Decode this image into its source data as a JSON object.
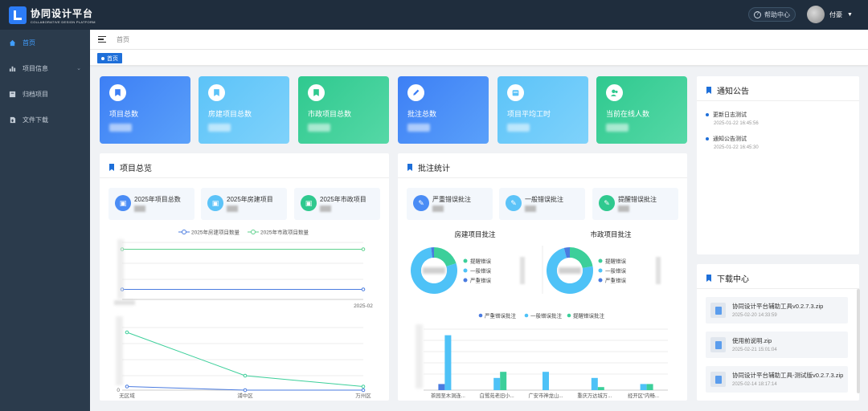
{
  "app": {
    "title": "协同设计平台",
    "subtitle": "COLLABORATIVE DESIGN PLATFORM"
  },
  "header": {
    "help_label": "帮助中心",
    "help_icon": "question-icon",
    "user_name": "付豪"
  },
  "sidebar": {
    "items": [
      {
        "label": "首页",
        "icon": "home-icon",
        "active": true
      },
      {
        "label": "项目信息",
        "icon": "bar-chart-icon",
        "has_children": true
      },
      {
        "label": "归档项目",
        "icon": "archive-icon"
      },
      {
        "label": "文件下载",
        "icon": "download-icon"
      }
    ]
  },
  "breadcrumb": {
    "current": "首页"
  },
  "tags": [
    {
      "label": "首页",
      "active": true
    }
  ],
  "stats": [
    {
      "label": "项目总数",
      "icon": "bookmark-icon",
      "color_from": "#3d7ff5",
      "color_to": "#5aa0fa"
    },
    {
      "label": "房建项目总数",
      "icon": "bookmark-icon",
      "color_from": "#5cc3f8",
      "color_to": "#7fd2fb"
    },
    {
      "label": "市政项目总数",
      "icon": "bookmark-icon",
      "color_from": "#2fc98f",
      "color_to": "#55d8a6"
    },
    {
      "label": "批注总数",
      "icon": "pen-icon",
      "color_from": "#3d7ff5",
      "color_to": "#5aa0fa"
    },
    {
      "label": "项目平均工时",
      "icon": "calendar-icon",
      "color_from": "#5cc3f8",
      "color_to": "#7fd2fb"
    },
    {
      "label": "当前在线人数",
      "icon": "users-icon",
      "color_from": "#2fc98f",
      "color_to": "#55d8a6"
    }
  ],
  "overview": {
    "title": "项目总览",
    "minis": [
      {
        "label": "2025年项目总数",
        "color": "#4a8cf5"
      },
      {
        "label": "2025年房建项目",
        "color": "#5cc3f8"
      },
      {
        "label": "2025年市政项目",
        "color": "#2fc98f"
      }
    ],
    "x_last_label": "2025-02",
    "zero_label": "0"
  },
  "annotation": {
    "title": "批注统计",
    "minis": [
      {
        "label": "严重错误批注",
        "color": "#4a8cf5"
      },
      {
        "label": "一般错误批注",
        "color": "#5cc3f8"
      },
      {
        "label": "提醒错误批注",
        "color": "#2fc98f"
      }
    ],
    "pie1_title": "房建项目批注",
    "pie2_title": "市政项目批注",
    "pie_legend": [
      "提醒错误",
      "一般错误",
      "严重错误"
    ]
  },
  "notices": {
    "title": "通知公告",
    "items": [
      {
        "title": "更新日志测试",
        "date": "2025-01-22 16:45:56"
      },
      {
        "title": "通知公告测试",
        "date": "2025-01-22 16:45:30"
      }
    ]
  },
  "downloads": {
    "title": "下载中心",
    "items": [
      {
        "name": "协同设计平台辅助工具v0.2.7.3.zip",
        "date": "2025-02-20 14:33:59"
      },
      {
        "name": "使用前说明.zip",
        "date": "2025-02-21 15:01:04"
      },
      {
        "name": "协同设计平台辅助工具-测试版v0.2.7.3.zip",
        "date": "2025-02-14 18:17:14"
      }
    ]
  },
  "chart_data": [
    {
      "type": "line",
      "series": [
        {
          "name": "2025年房建项目数量",
          "color": "#4a7be0",
          "values": [
            1,
            1
          ]
        },
        {
          "name": "2025年市政项目数量",
          "color": "#5fd18e",
          "values": [
            5,
            5
          ]
        }
      ],
      "x_last_label": "2025-02"
    },
    {
      "type": "line",
      "categories": [
        "无区域",
        "浦中区",
        "万州区"
      ],
      "series": [
        {
          "color": "#3ccf9a",
          "values": [
            8,
            2,
            0.5
          ]
        },
        {
          "color": "#4a7be0",
          "values": [
            0.5,
            0,
            0
          ]
        }
      ],
      "ylim": [
        0,
        10
      ]
    },
    {
      "type": "pie",
      "title": "房建项目批注",
      "legend": [
        "提醒错误",
        "一般错误",
        "严重错误"
      ],
      "values": [
        20,
        78,
        2
      ],
      "colors": [
        "#3ccf9a",
        "#4ec2f7",
        "#4a7be0"
      ]
    },
    {
      "type": "pie",
      "title": "市政项目批注",
      "legend": [
        "提醒错误",
        "一般错误",
        "严重错误"
      ],
      "values": [
        22,
        74,
        4
      ],
      "colors": [
        "#3ccf9a",
        "#4ec2f7",
        "#4a7be0"
      ]
    },
    {
      "type": "bar",
      "categories": [
        "茶园至木洞连...",
        "白鹭苑老旧小...",
        "广安市神龙山...",
        "重庆万达城万...",
        "经开区“内畅..."
      ],
      "series": [
        {
          "name": "严重错误批注",
          "color": "#4a7be0",
          "values": [
            1,
            0,
            0,
            0,
            0
          ]
        },
        {
          "name": "一般错误批注",
          "color": "#4ec2f7",
          "values": [
            9,
            2,
            3,
            2,
            1
          ]
        },
        {
          "name": "提醒错误批注",
          "color": "#3ccf9a",
          "values": [
            0,
            3,
            0,
            0.5,
            1
          ]
        }
      ],
      "ylim": [
        0,
        10
      ]
    }
  ]
}
